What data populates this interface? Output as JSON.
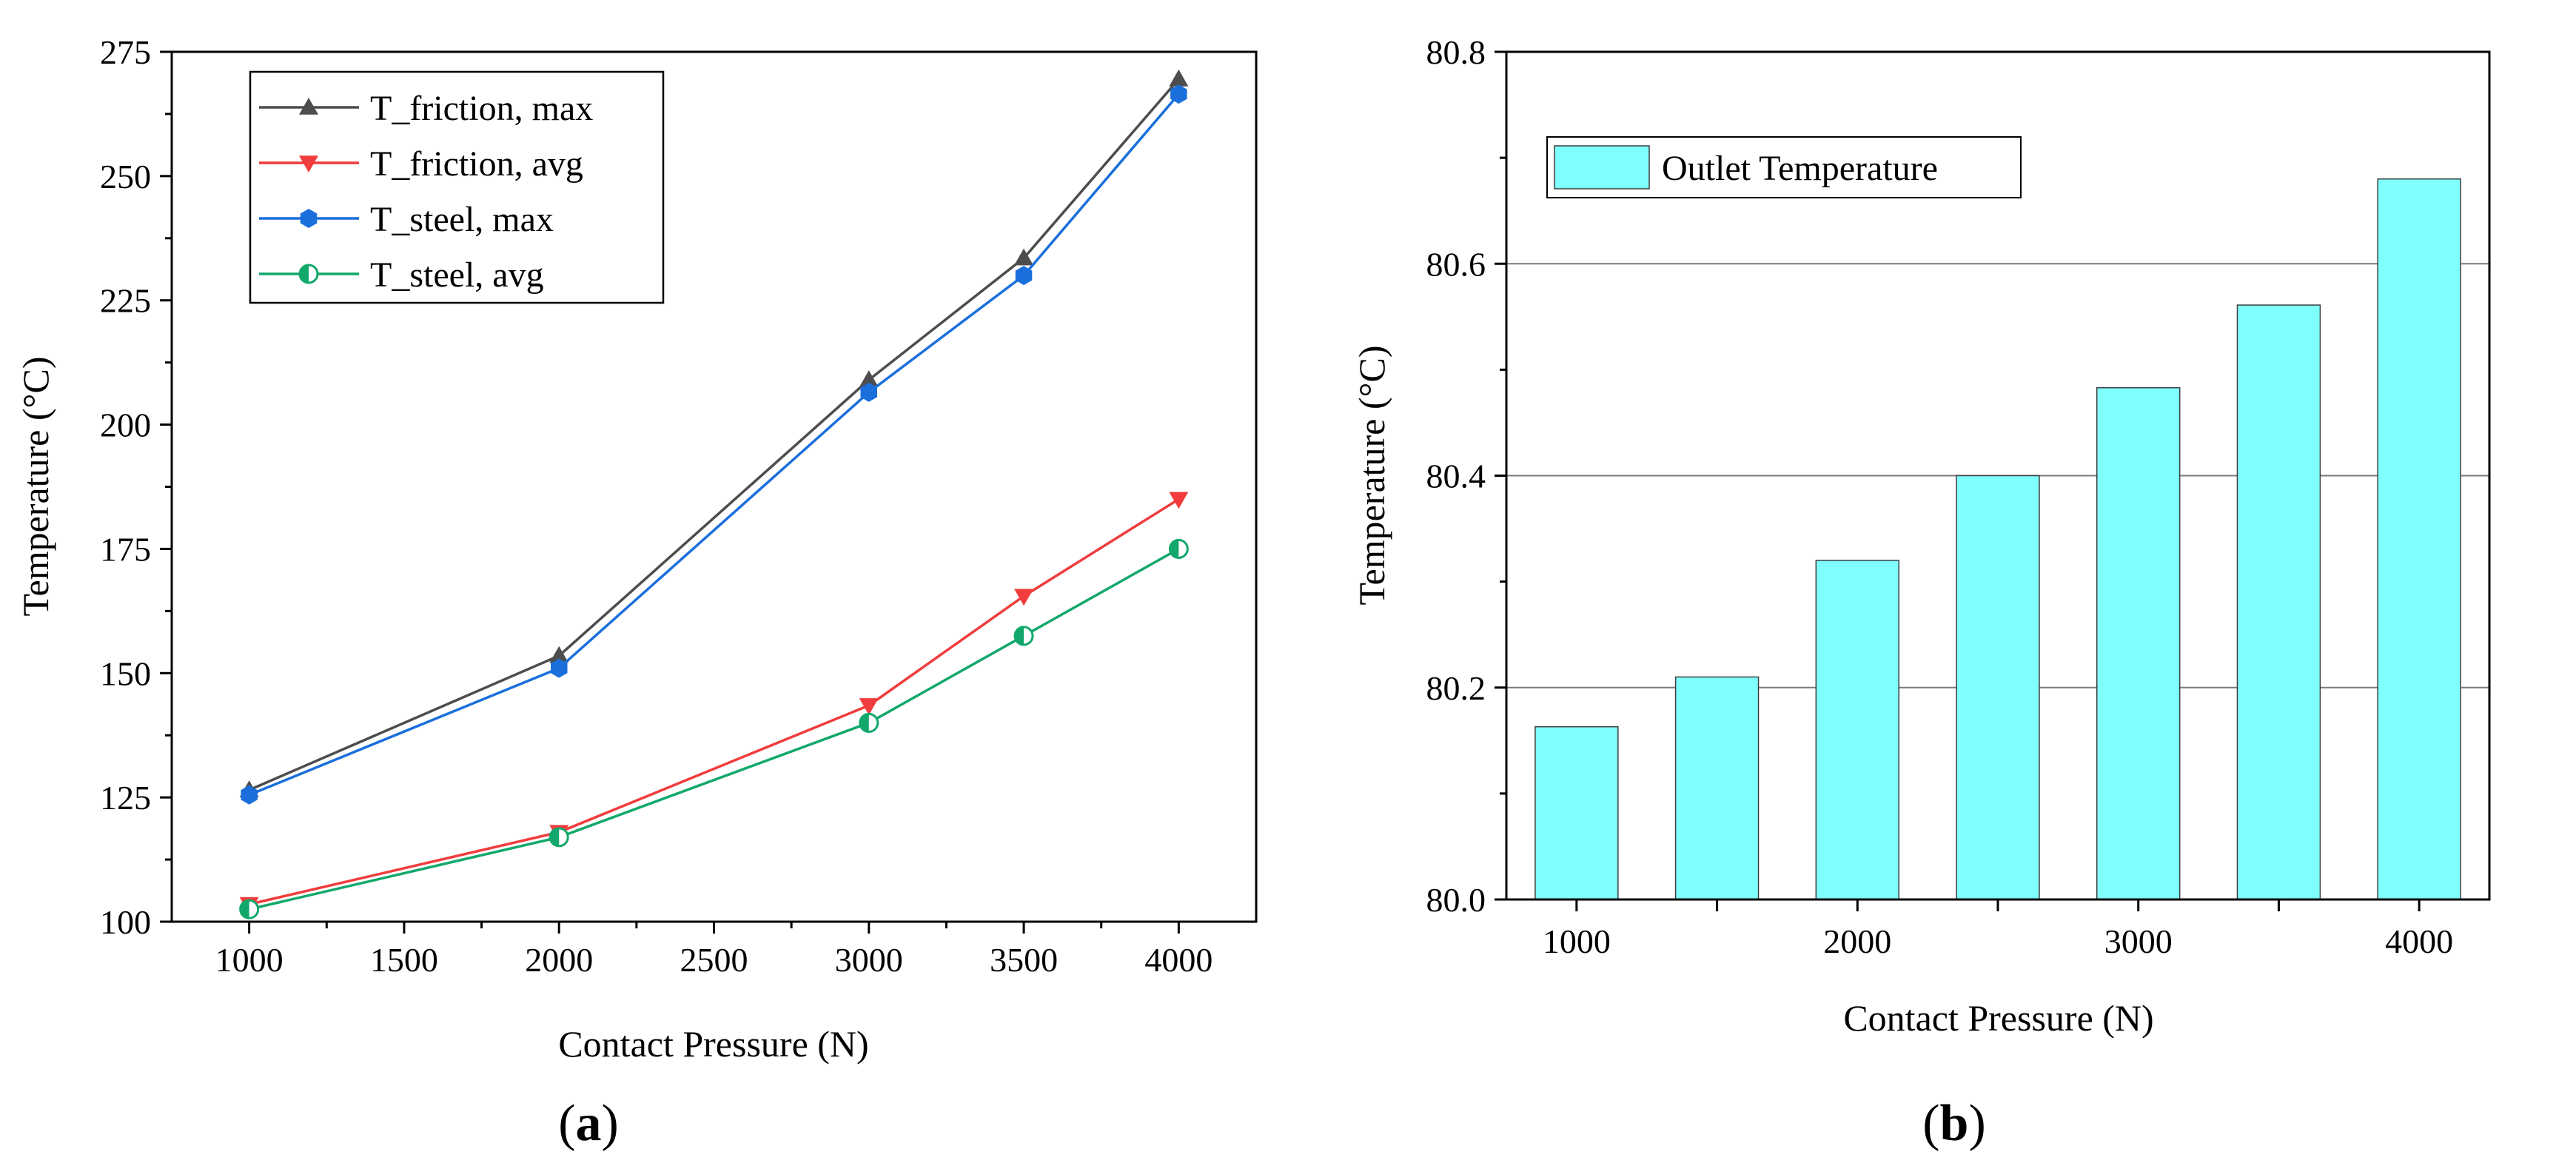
{
  "chart_data": [
    {
      "type": "line",
      "panel_label": "a",
      "xlabel": "Contact Pressure (N)",
      "ylabel": "Temperature (°C)",
      "xlim": [
        750,
        4250
      ],
      "ylim": [
        100,
        275
      ],
      "xticks": [
        1000,
        1500,
        2000,
        2500,
        3000,
        3500,
        4000
      ],
      "yticks": [
        100,
        125,
        150,
        175,
        200,
        225,
        250,
        275
      ],
      "grid": false,
      "legend_position": "top-left",
      "x": [
        1000,
        2000,
        3000,
        3500,
        4000
      ],
      "series": [
        {
          "name": "T_friction, max",
          "color": "#4d4d4d",
          "marker": "triangle-up",
          "values": [
            126.5,
            153.5,
            209,
            233.5,
            269.5
          ]
        },
        {
          "name": "T_friction, avg",
          "color": "#f03c3c",
          "marker": "triangle-down",
          "values": [
            103.5,
            118,
            143.5,
            165.5,
            185
          ]
        },
        {
          "name": "T_steel, max",
          "color": "#1a6fdc",
          "marker": "hexagon",
          "values": [
            125.5,
            151,
            206.5,
            230,
            266.5
          ]
        },
        {
          "name": "T_steel, avg",
          "color": "#12a86b",
          "marker": "half-circle",
          "values": [
            102.5,
            117,
            140,
            157.5,
            175
          ]
        }
      ]
    },
    {
      "type": "bar",
      "panel_label": "b",
      "xlabel": "Contact Pressure (N)",
      "ylabel": "Temperature (°C)",
      "ylim": [
        80.0,
        80.8
      ],
      "yticks": [
        "80.0",
        "80.2",
        "80.4",
        "80.6",
        "80.8"
      ],
      "xtick_labels": [
        "1000",
        "2000",
        "3000",
        "4000"
      ],
      "grid": true,
      "legend_position": "top-left",
      "bar_color": "#80ffff",
      "series": [
        {
          "name": "Outlet Temperature",
          "values": [
            80.163,
            80.21,
            80.32,
            80.4,
            80.483,
            80.561,
            80.68
          ]
        }
      ]
    }
  ]
}
